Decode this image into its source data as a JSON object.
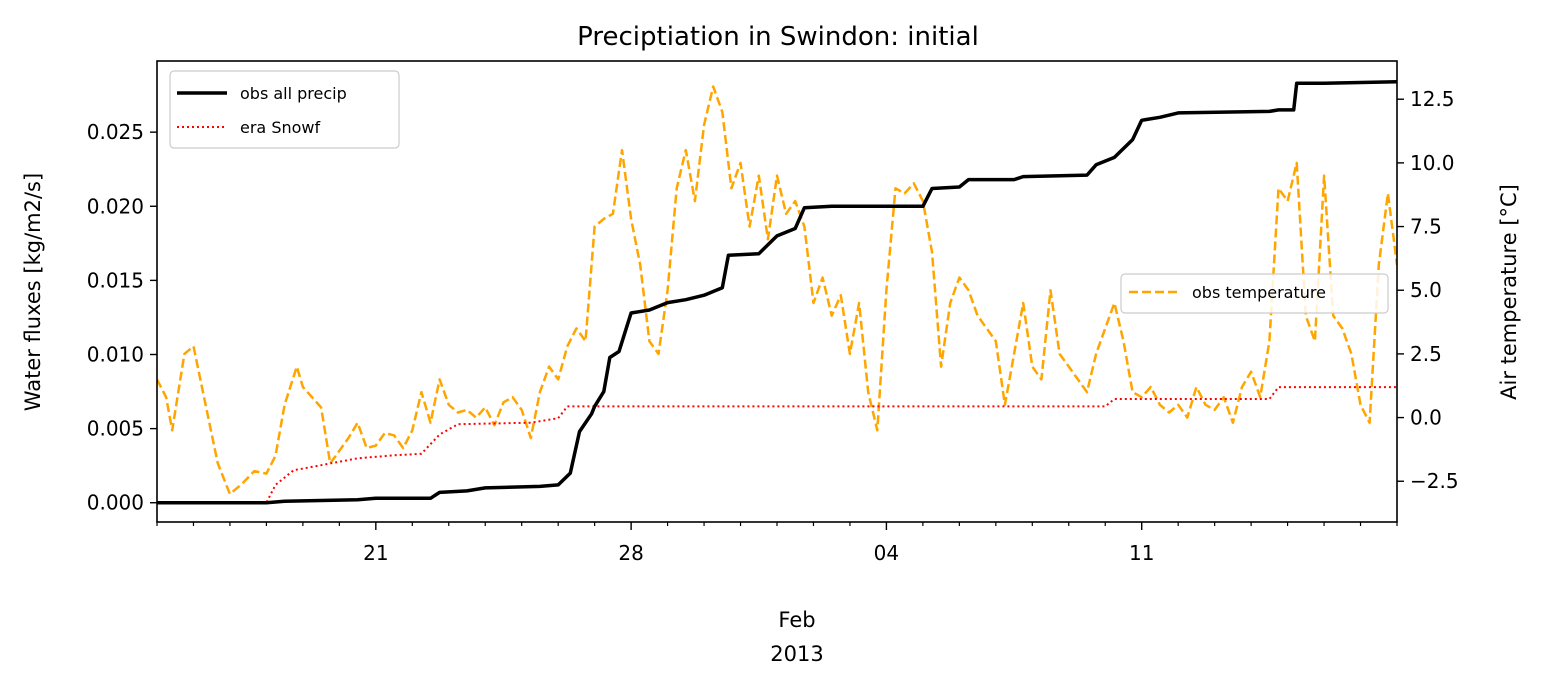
{
  "chart_data": {
    "type": "line",
    "title": "Preciptiation in Swindon: initial",
    "x_start": "2013-01-15",
    "x_end": "2013-02-18",
    "x_tick_labels": [
      {
        "date": "2013-01-21",
        "label": "21"
      },
      {
        "date": "2013-01-28",
        "label": "28"
      },
      {
        "date": "2013-02-04",
        "label": "04"
      },
      {
        "date": "2013-02-11",
        "label": "11"
      }
    ],
    "x_minor_ticks": [
      "2013-01-15",
      "2013-01-16",
      "2013-01-17",
      "2013-01-18",
      "2013-01-19",
      "2013-01-20",
      "2013-01-22",
      "2013-01-23",
      "2013-01-24",
      "2013-01-25",
      "2013-01-26",
      "2013-01-27",
      "2013-01-29",
      "2013-01-30",
      "2013-01-31",
      "2013-02-01",
      "2013-02-02",
      "2013-02-03",
      "2013-02-05",
      "2013-02-06",
      "2013-02-07",
      "2013-02-08",
      "2013-02-09",
      "2013-02-10",
      "2013-02-12",
      "2013-02-13",
      "2013-02-14",
      "2013-02-15",
      "2013-02-16",
      "2013-02-17",
      "2013-02-18"
    ],
    "x_month_label": "Feb",
    "x_year_label": "2013",
    "left_axis": {
      "ylabel": "Water fluxes [kg/m2/s]",
      "ylim": [
        -0.0013,
        0.0298
      ],
      "ticks": [
        0.0,
        0.005,
        0.01,
        0.015,
        0.02,
        0.025
      ],
      "tick_labels": [
        "0.000",
        "0.005",
        "0.010",
        "0.015",
        "0.020",
        "0.025"
      ]
    },
    "right_axis": {
      "ylabel": "Air temperature [°C]",
      "ylim": [
        -4.1,
        14.0
      ],
      "ticks": [
        -2.5,
        0.0,
        2.5,
        5.0,
        7.5,
        10.0,
        12.5
      ],
      "tick_labels": [
        "−2.5",
        "0.0",
        "2.5",
        "5.0",
        "7.5",
        "10.0",
        "12.5"
      ]
    },
    "series": [
      {
        "name": "obs all precip",
        "axis": "left",
        "color": "#000000",
        "style": "solid",
        "points": [
          [
            "2013-01-15",
            0.0
          ],
          [
            "2013-01-18",
            0.0
          ],
          [
            "2013-01-18T12:00",
            0.0001
          ],
          [
            "2013-01-20T12:00",
            0.0002
          ],
          [
            "2013-01-21",
            0.0003
          ],
          [
            "2013-01-22T12:00",
            0.0003
          ],
          [
            "2013-01-22T18:00",
            0.0007
          ],
          [
            "2013-01-23T12:00",
            0.0008
          ],
          [
            "2013-01-24",
            0.001
          ],
          [
            "2013-01-25T12:00",
            0.0011
          ],
          [
            "2013-01-26",
            0.0012
          ],
          [
            "2013-01-26T08:00",
            0.002
          ],
          [
            "2013-01-26T14:00",
            0.0048
          ],
          [
            "2013-01-26T22:00",
            0.006
          ],
          [
            "2013-01-27",
            0.0065
          ],
          [
            "2013-01-27T06:00",
            0.0075
          ],
          [
            "2013-01-27T10:00",
            0.0098
          ],
          [
            "2013-01-27T16:00",
            0.0102
          ],
          [
            "2013-01-27T20:00",
            0.0115
          ],
          [
            "2013-01-28",
            0.0128
          ],
          [
            "2013-01-28T12:00",
            0.013
          ],
          [
            "2013-01-29",
            0.0135
          ],
          [
            "2013-01-29T12:00",
            0.0137
          ],
          [
            "2013-01-30",
            0.014
          ],
          [
            "2013-01-30T12:00",
            0.0145
          ],
          [
            "2013-01-30T16:00",
            0.0167
          ],
          [
            "2013-01-31T12:00",
            0.0168
          ],
          [
            "2013-02-01",
            0.018
          ],
          [
            "2013-02-01T12:00",
            0.0185
          ],
          [
            "2013-02-01T18:00",
            0.0199
          ],
          [
            "2013-02-02T12:00",
            0.02
          ],
          [
            "2013-02-05",
            0.02
          ],
          [
            "2013-02-05T06:00",
            0.0212
          ],
          [
            "2013-02-06",
            0.0213
          ],
          [
            "2013-02-06T06:00",
            0.0218
          ],
          [
            "2013-02-07T12:00",
            0.0218
          ],
          [
            "2013-02-07T18:00",
            0.022
          ],
          [
            "2013-02-09T12:00",
            0.0221
          ],
          [
            "2013-02-09T18:00",
            0.0228
          ],
          [
            "2013-02-10T06:00",
            0.0233
          ],
          [
            "2013-02-10T18:00",
            0.0245
          ],
          [
            "2013-02-11",
            0.0258
          ],
          [
            "2013-02-11T12:00",
            0.026
          ],
          [
            "2013-02-12",
            0.0263
          ],
          [
            "2013-02-14T12:00",
            0.0264
          ],
          [
            "2013-02-14T18:00",
            0.0265
          ],
          [
            "2013-02-15T04:00",
            0.0265
          ],
          [
            "2013-02-15T06:00",
            0.0283
          ],
          [
            "2013-02-16",
            0.0283
          ],
          [
            "2013-02-18",
            0.0284
          ]
        ]
      },
      {
        "name": "era Snowf",
        "axis": "left",
        "color": "#ff0000",
        "style": "dotted",
        "points": [
          [
            "2013-01-15",
            0.0
          ],
          [
            "2013-01-18",
            0.0
          ],
          [
            "2013-01-18T06:00",
            0.0012
          ],
          [
            "2013-01-18T18:00",
            0.0022
          ],
          [
            "2013-01-19",
            0.0023
          ],
          [
            "2013-01-20T12:00",
            0.003
          ],
          [
            "2013-01-21T12:00",
            0.0032
          ],
          [
            "2013-01-22T06:00",
            0.0033
          ],
          [
            "2013-01-22T18:00",
            0.0046
          ],
          [
            "2013-01-23T06:00",
            0.0053
          ],
          [
            "2013-01-25T06:00",
            0.0054
          ],
          [
            "2013-01-25T18:00",
            0.0056
          ],
          [
            "2013-01-26",
            0.0057
          ],
          [
            "2013-01-26T06:00",
            0.0065
          ],
          [
            "2013-02-10",
            0.0065
          ],
          [
            "2013-02-10T06:00",
            0.007
          ],
          [
            "2013-02-14T12:00",
            0.007
          ],
          [
            "2013-02-14T18:00",
            0.0078
          ],
          [
            "2013-02-18",
            0.0078
          ]
        ]
      },
      {
        "name": "obs temperature",
        "axis": "right",
        "color": "#ffa500",
        "style": "dashed",
        "points": [
          [
            "2013-01-15",
            1.5
          ],
          [
            "2013-01-15T06:00",
            0.8
          ],
          [
            "2013-01-15T10:00",
            -0.5
          ],
          [
            "2013-01-15T18:00",
            2.5
          ],
          [
            "2013-01-16",
            2.8
          ],
          [
            "2013-01-16T08:00",
            0.5
          ],
          [
            "2013-01-16T16:00",
            -1.8
          ],
          [
            "2013-01-17",
            -3.0
          ],
          [
            "2013-01-17T08:00",
            -2.6
          ],
          [
            "2013-01-17T16:00",
            -2.1
          ],
          [
            "2013-01-18",
            -2.2
          ],
          [
            "2013-01-18T06:00",
            -1.5
          ],
          [
            "2013-01-18T12:00",
            0.5
          ],
          [
            "2013-01-18T20:00",
            2.0
          ],
          [
            "2013-01-19",
            1.2
          ],
          [
            "2013-01-19T06:00",
            0.8
          ],
          [
            "2013-01-19T12:00",
            0.4
          ],
          [
            "2013-01-19T18:00",
            -1.8
          ],
          [
            "2013-01-20",
            -1.3
          ],
          [
            "2013-01-20T06:00",
            -0.8
          ],
          [
            "2013-01-20T12:00",
            -0.2
          ],
          [
            "2013-01-20T18:00",
            -1.2
          ],
          [
            "2013-01-21",
            -1.1
          ],
          [
            "2013-01-21T06:00",
            -0.6
          ],
          [
            "2013-01-21T12:00",
            -0.7
          ],
          [
            "2013-01-21T18:00",
            -1.2
          ],
          [
            "2013-01-22",
            -0.5
          ],
          [
            "2013-01-22T06:00",
            1.0
          ],
          [
            "2013-01-22T12:00",
            -0.2
          ],
          [
            "2013-01-22T18:00",
            1.5
          ],
          [
            "2013-01-23",
            0.5
          ],
          [
            "2013-01-23T06:00",
            0.2
          ],
          [
            "2013-01-23T12:00",
            0.3
          ],
          [
            "2013-01-23T18:00",
            0.0
          ],
          [
            "2013-01-24",
            0.4
          ],
          [
            "2013-01-24T06:00",
            -0.3
          ],
          [
            "2013-01-24T12:00",
            0.6
          ],
          [
            "2013-01-24T18:00",
            0.8
          ],
          [
            "2013-01-25",
            0.3
          ],
          [
            "2013-01-25T06:00",
            -0.8
          ],
          [
            "2013-01-25T12:00",
            1.0
          ],
          [
            "2013-01-25T18:00",
            2.0
          ],
          [
            "2013-01-26",
            1.5
          ],
          [
            "2013-01-26T06:00",
            2.8
          ],
          [
            "2013-01-26T12:00",
            3.5
          ],
          [
            "2013-01-26T18:00",
            3.0
          ],
          [
            "2013-01-27",
            7.5
          ],
          [
            "2013-01-27T06:00",
            7.8
          ],
          [
            "2013-01-27T12:00",
            8.0
          ],
          [
            "2013-01-27T18:00",
            10.5
          ],
          [
            "2013-01-28",
            7.8
          ],
          [
            "2013-01-28T06:00",
            6.0
          ],
          [
            "2013-01-28T12:00",
            3.0
          ],
          [
            "2013-01-28T18:00",
            2.5
          ],
          [
            "2013-01-29",
            5.0
          ],
          [
            "2013-01-29T06:00",
            9.0
          ],
          [
            "2013-01-29T12:00",
            10.5
          ],
          [
            "2013-01-29T18:00",
            8.5
          ],
          [
            "2013-01-30",
            11.5
          ],
          [
            "2013-01-30T06:00",
            13.0
          ],
          [
            "2013-01-30T12:00",
            12.0
          ],
          [
            "2013-01-30T18:00",
            9.0
          ],
          [
            "2013-01-31",
            10.0
          ],
          [
            "2013-01-31T06:00",
            7.5
          ],
          [
            "2013-01-31T12:00",
            9.5
          ],
          [
            "2013-01-31T18:00",
            7.0
          ],
          [
            "2013-02-01",
            9.5
          ],
          [
            "2013-02-01T06:00",
            8.0
          ],
          [
            "2013-02-01T12:00",
            8.5
          ],
          [
            "2013-02-01T18:00",
            7.5
          ],
          [
            "2013-02-02",
            4.5
          ],
          [
            "2013-02-02T06:00",
            5.5
          ],
          [
            "2013-02-02T12:00",
            4.0
          ],
          [
            "2013-02-02T18:00",
            4.8
          ],
          [
            "2013-02-03",
            2.5
          ],
          [
            "2013-02-03T06:00",
            4.5
          ],
          [
            "2013-02-03T12:00",
            1.0
          ],
          [
            "2013-02-03T18:00",
            -0.5
          ],
          [
            "2013-02-04",
            5.0
          ],
          [
            "2013-02-04T06:00",
            9.0
          ],
          [
            "2013-02-04T12:00",
            8.8
          ],
          [
            "2013-02-04T18:00",
            9.2
          ],
          [
            "2013-02-05",
            8.5
          ],
          [
            "2013-02-05T06:00",
            6.5
          ],
          [
            "2013-02-05T12:00",
            2.0
          ],
          [
            "2013-02-05T18:00",
            4.5
          ],
          [
            "2013-02-06",
            5.5
          ],
          [
            "2013-02-06T06:00",
            5.0
          ],
          [
            "2013-02-06T12:00",
            4.0
          ],
          [
            "2013-02-06T18:00",
            3.5
          ],
          [
            "2013-02-07",
            3.0
          ],
          [
            "2013-02-07T06:00",
            0.5
          ],
          [
            "2013-02-07T12:00",
            2.5
          ],
          [
            "2013-02-07T18:00",
            4.5
          ],
          [
            "2013-02-08",
            2.0
          ],
          [
            "2013-02-08T06:00",
            1.5
          ],
          [
            "2013-02-08T12:00",
            5.0
          ],
          [
            "2013-02-08T18:00",
            2.5
          ],
          [
            "2013-02-09",
            2.0
          ],
          [
            "2013-02-09T06:00",
            1.5
          ],
          [
            "2013-02-09T12:00",
            1.0
          ],
          [
            "2013-02-09T18:00",
            2.5
          ],
          [
            "2013-02-10",
            3.5
          ],
          [
            "2013-02-10T06:00",
            4.5
          ],
          [
            "2013-02-10T12:00",
            3.0
          ],
          [
            "2013-02-10T18:00",
            1.0
          ],
          [
            "2013-02-11",
            0.8
          ],
          [
            "2013-02-11T06:00",
            1.2
          ],
          [
            "2013-02-11T12:00",
            0.5
          ],
          [
            "2013-02-11T18:00",
            0.2
          ],
          [
            "2013-02-12",
            0.5
          ],
          [
            "2013-02-12T06:00",
            0.0
          ],
          [
            "2013-02-12T12:00",
            1.2
          ],
          [
            "2013-02-12T18:00",
            0.5
          ],
          [
            "2013-02-13",
            0.3
          ],
          [
            "2013-02-13T06:00",
            0.8
          ],
          [
            "2013-02-13T12:00",
            -0.2
          ],
          [
            "2013-02-13T18:00",
            1.2
          ],
          [
            "2013-02-14",
            1.8
          ],
          [
            "2013-02-14T06:00",
            0.8
          ],
          [
            "2013-02-14T12:00",
            3.0
          ],
          [
            "2013-02-14T18:00",
            9.0
          ],
          [
            "2013-02-15",
            8.5
          ],
          [
            "2013-02-15T06:00",
            10.0
          ],
          [
            "2013-02-15T12:00",
            4.0
          ],
          [
            "2013-02-15T18:00",
            3.0
          ],
          [
            "2013-02-16",
            9.5
          ],
          [
            "2013-02-16T06:00",
            4.0
          ],
          [
            "2013-02-16T12:00",
            3.5
          ],
          [
            "2013-02-16T18:00",
            2.5
          ],
          [
            "2013-02-17",
            0.5
          ],
          [
            "2013-02-17T06:00",
            -0.2
          ],
          [
            "2013-02-17T12:00",
            6.0
          ],
          [
            "2013-02-17T18:00",
            8.8
          ],
          [
            "2013-02-18",
            6.0
          ]
        ]
      }
    ],
    "legends": [
      {
        "placement": "upper-left",
        "entries": [
          "obs all precip",
          "era Snowf"
        ]
      },
      {
        "placement": "center-right",
        "entries": [
          "obs temperature"
        ]
      }
    ],
    "grid": false
  }
}
